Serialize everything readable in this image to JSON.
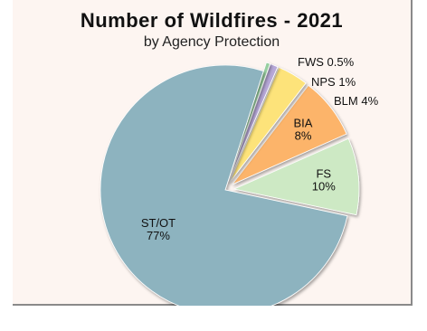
{
  "chart_data": {
    "type": "pie",
    "title": "Number of Wildfires - 2021",
    "subtitle": "by Agency Protection",
    "slices": [
      {
        "label": "FS",
        "pct_label": "10%",
        "value": 10,
        "color": "#cde9c4",
        "exploded": true,
        "label_inside": true
      },
      {
        "label": "BIA",
        "pct_label": "8%",
        "value": 8,
        "color": "#fcb46b",
        "exploded": true,
        "label_inside": true
      },
      {
        "label": "BLM",
        "pct_label": "4%",
        "value": 4,
        "color": "#fde37a",
        "exploded": true,
        "label_inside": false
      },
      {
        "label": "NPS",
        "pct_label": "1%",
        "value": 1,
        "color": "#b7a8d8",
        "exploded": true,
        "label_inside": false
      },
      {
        "label": "FWS",
        "pct_label": "0.5%",
        "value": 0.5,
        "color": "#98cfa0",
        "exploded": true,
        "label_inside": false
      },
      {
        "label": "ST/OT",
        "pct_label": "77%",
        "value": 77,
        "color": "#8db3bf",
        "exploded": false,
        "label_inside": true
      }
    ],
    "legend": "none"
  }
}
